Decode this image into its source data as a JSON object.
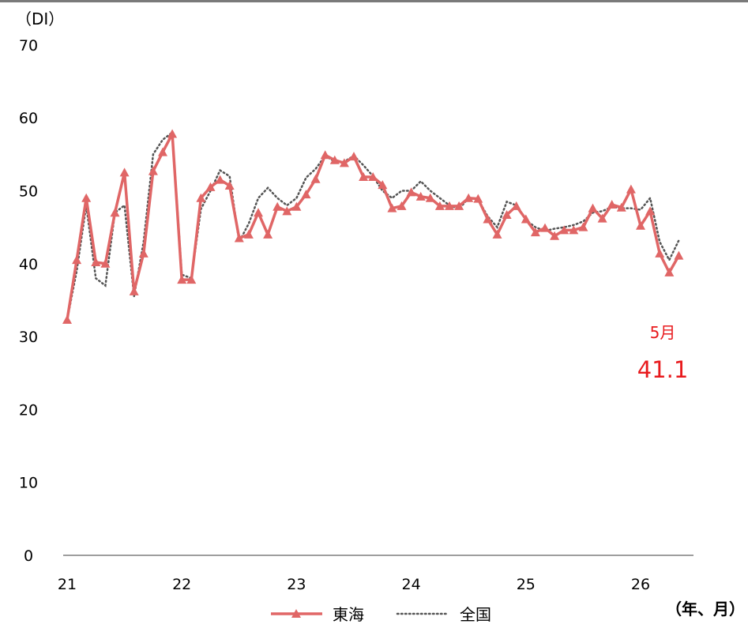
{
  "chart_data": {
    "type": "line",
    "y_unit": "（DI）",
    "x_unit": "（年、月）",
    "ylim": [
      0,
      70
    ],
    "yticks": [
      0,
      10,
      20,
      30,
      40,
      50,
      60,
      70
    ],
    "x_tick_labels": [
      "21",
      "22",
      "23",
      "24",
      "25",
      "26"
    ],
    "series_colors": {
      "tokai": "#e06666",
      "national": "#555555"
    },
    "series": [
      {
        "name": "東海",
        "style": "solid-triangle",
        "values": [
          32.3,
          40.5,
          49.0,
          40.2,
          40.0,
          47.0,
          52.5,
          36.2,
          41.4,
          52.7,
          55.3,
          57.8,
          37.8,
          37.8,
          49.0,
          50.5,
          51.5,
          50.7,
          43.5,
          44.0,
          47.0,
          44.0,
          47.8,
          47.2,
          47.8,
          49.5,
          51.6,
          54.9,
          54.2,
          53.8,
          54.7,
          51.9,
          51.9,
          50.8,
          47.6,
          47.9,
          49.8,
          49.2,
          49.0,
          47.9,
          47.9,
          47.9,
          49.0,
          48.9,
          46.1,
          44.0,
          46.7,
          47.9,
          46.1,
          44.3,
          44.9,
          43.8,
          44.6,
          44.6,
          45.0,
          47.6,
          46.2,
          48.1,
          47.7,
          50.2,
          45.2,
          47.2,
          41.4,
          38.8,
          41.1
        ],
        "annotation": {
          "month": "5月",
          "value": "41.1"
        }
      },
      {
        "name": "全国",
        "style": "dotted",
        "values": [
          32.3,
          39.0,
          48.0,
          38.0,
          37.0,
          47.0,
          48.0,
          35.5,
          43.0,
          55.0,
          57.0,
          58.0,
          38.5,
          38.0,
          47.5,
          50.0,
          52.8,
          52.0,
          43.0,
          45.5,
          49.0,
          50.4,
          49.0,
          48.0,
          49.0,
          51.8,
          53.0,
          54.8,
          54.0,
          54.0,
          54.8,
          53.5,
          52.0,
          50.0,
          49.0,
          50.0,
          50.0,
          51.3,
          50.0,
          49.0,
          48.0,
          47.5,
          49.0,
          48.8,
          46.5,
          45.0,
          48.5,
          48.0,
          46.0,
          45.0,
          44.5,
          44.8,
          45.0,
          45.3,
          45.8,
          47.0,
          47.2,
          47.8,
          47.6,
          47.6,
          47.4,
          49.0,
          43.0,
          40.5,
          43.2
        ]
      }
    ],
    "grid": false,
    "legend": {
      "position": "bottom-center"
    }
  }
}
